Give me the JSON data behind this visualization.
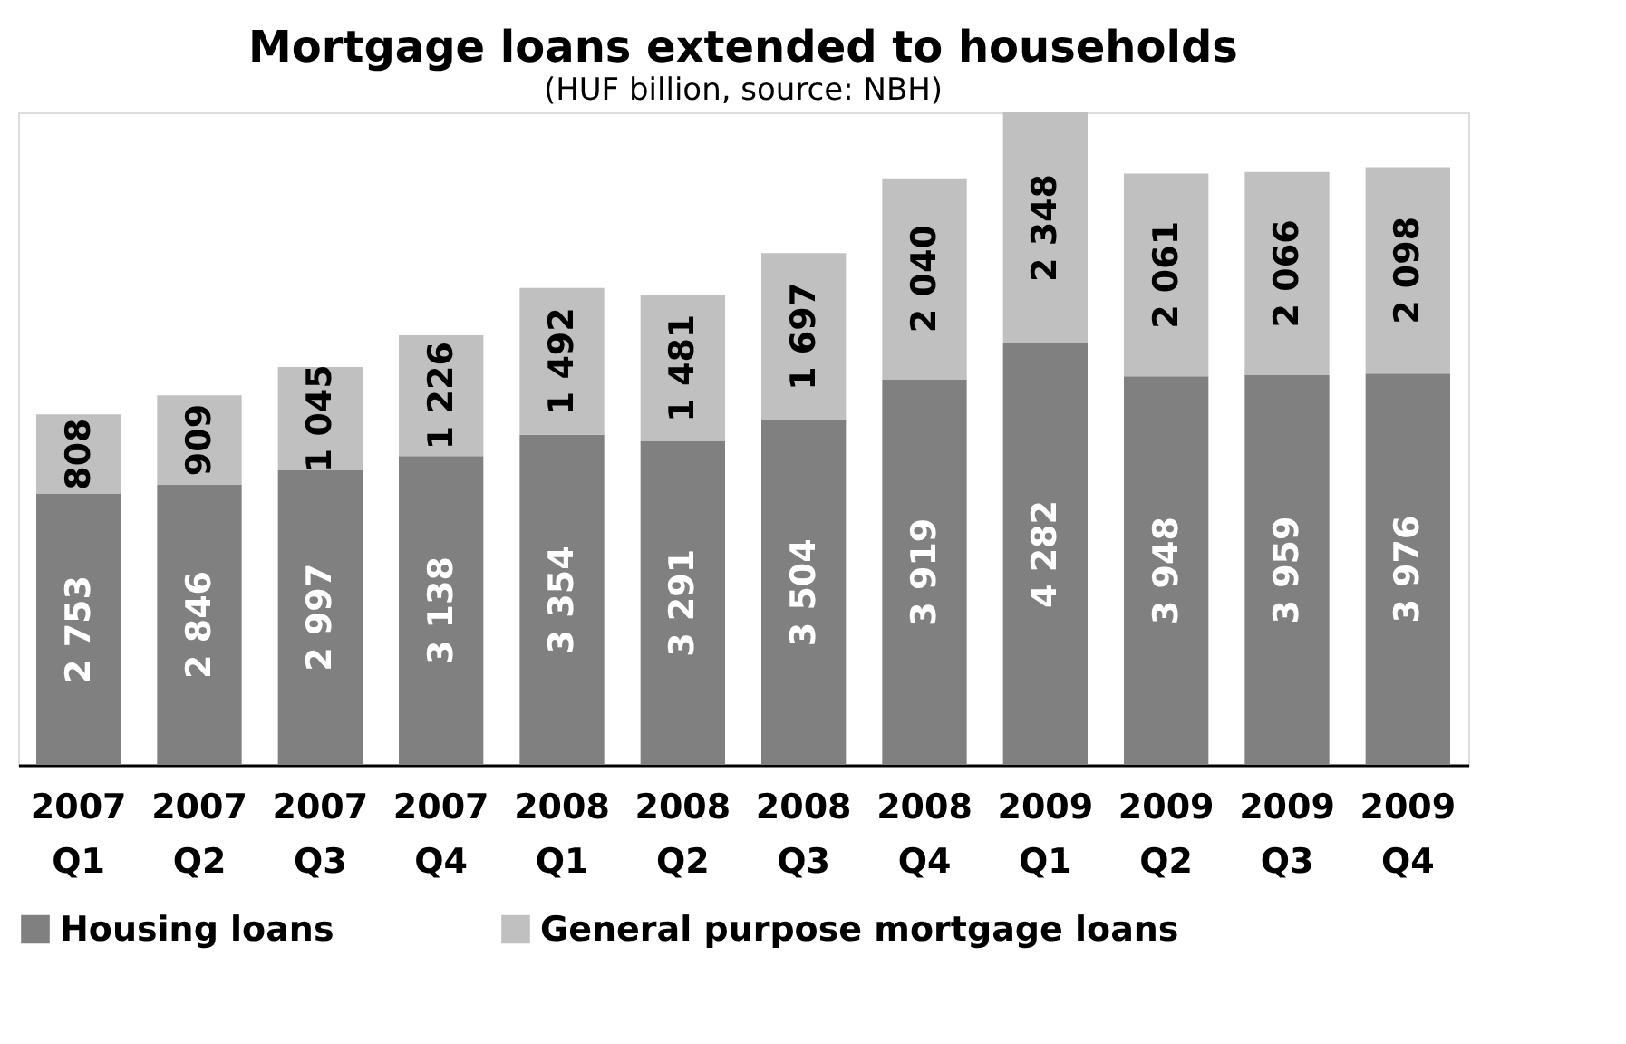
{
  "chart_data": {
    "type": "bar",
    "title": "Mortgage loans extended to households",
    "subtitle": "(HUF billion, source: NBH)",
    "categories": [
      "2007 Q1",
      "2007 Q2",
      "2007 Q3",
      "2007 Q4",
      "2008 Q1",
      "2008 Q2",
      "2008 Q3",
      "2008 Q4",
      "2009 Q1",
      "2009 Q2",
      "2009 Q3",
      "2009 Q4"
    ],
    "stacked": true,
    "legend": "bottom",
    "grid": false,
    "tick_labels": "x",
    "series": [
      {
        "name": "Housing loans",
        "color": "#808080",
        "values": [
          2753,
          2846,
          2997,
          3138,
          3354,
          3291,
          3504,
          3919,
          4282,
          3948,
          3959,
          3976
        ],
        "value_labels": [
          "2 753",
          "2 846",
          "2 997",
          "3 138",
          "3 354",
          "3 291",
          "3 504",
          "3 919",
          "4 282",
          "3 948",
          "3 959",
          "3 976"
        ]
      },
      {
        "name": "General purpose mortgage loans",
        "color": "#c0c0c0",
        "values": [
          808,
          909,
          1045,
          1226,
          1492,
          1481,
          1697,
          2040,
          2348,
          2061,
          2066,
          2098
        ],
        "value_labels": [
          "808",
          "909",
          "1 045",
          "1 226",
          "1 492",
          "1 481",
          "1 697",
          "2 040",
          "2 348",
          "2 061",
          "2 066",
          "2 098"
        ]
      }
    ]
  }
}
